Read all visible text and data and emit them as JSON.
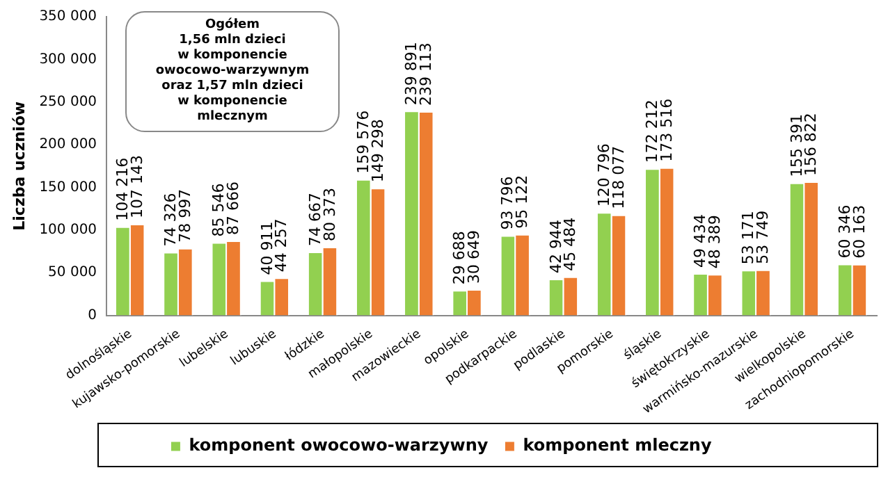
{
  "chart_data": {
    "type": "bar",
    "ylabel": "Liczba uczniów",
    "categories": [
      "dolnośląskie",
      "kujawsko-pomorskie",
      "lubelskie",
      "lubuskie",
      "łódzkie",
      "małopolskie",
      "mazowieckie",
      "opolskie",
      "podkarpackie",
      "podlaskie",
      "pomorskie",
      "śląskie",
      "świętokrzyskie",
      "warmińsko-mazurskie",
      "wielkopolskie",
      "zachodniopomorskie"
    ],
    "series": [
      {
        "name": "komponent owocowo-warzywny",
        "color": "#92d050",
        "values": [
          104216,
          74326,
          85546,
          40911,
          74667,
          159576,
          239891,
          29688,
          93796,
          42944,
          120796,
          172212,
          49434,
          53171,
          155391,
          60346
        ],
        "value_labels": [
          "104 216",
          "74 326",
          "85 546",
          "40 911",
          "74 667",
          "159 576",
          "239 891",
          "29 688",
          "93 796",
          "42 944",
          "120 796",
          "172 212",
          "49 434",
          "53 171",
          "155 391",
          "60 346"
        ]
      },
      {
        "name": "komponent mleczny",
        "color": "#ed7d31",
        "values": [
          107143,
          78997,
          87666,
          44257,
          80373,
          149298,
          239113,
          30649,
          95122,
          45484,
          118077,
          173516,
          48389,
          53749,
          156822,
          60163
        ],
        "value_labels": [
          "107 143",
          "78 997",
          "87 666",
          "44 257",
          "80 373",
          "149 298",
          "239 113",
          "30 649",
          "95 122",
          "45 484",
          "118 077",
          "173 516",
          "48 389",
          "53 749",
          "156 822",
          "60 163"
        ]
      }
    ],
    "ylim": [
      0,
      350000
    ],
    "yticks": [
      {
        "value": 0,
        "label": "0"
      },
      {
        "value": 50000,
        "label": "50 000"
      },
      {
        "value": 100000,
        "label": "100 000"
      },
      {
        "value": 150000,
        "label": "150 000"
      },
      {
        "value": 200000,
        "label": "200 000"
      },
      {
        "value": 250000,
        "label": "250 000"
      },
      {
        "value": 300000,
        "label": "300 000"
      },
      {
        "value": 350000,
        "label": "350 000"
      }
    ],
    "grid": false,
    "legend": "bottom",
    "annotations": [
      "Ogółem\n1,56  mln  dzieci\nw komponencie\nowocowo-warzywnym\noraz  1,57  mln  dzieci\nw komponencie\nmlecznym"
    ]
  }
}
